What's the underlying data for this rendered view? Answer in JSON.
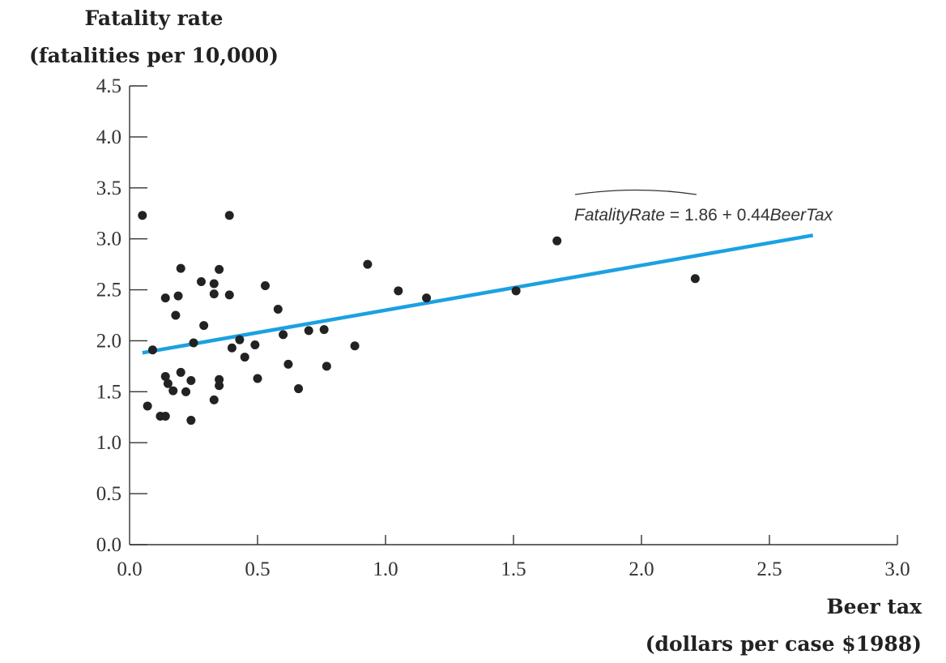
{
  "chart_data": {
    "type": "scatter",
    "ylabel": [
      "Fatality rate",
      "(fatalities per 10,000)"
    ],
    "xlabel": [
      "Beer tax",
      "(dollars per case $1988)"
    ],
    "xlim": [
      0.0,
      3.0
    ],
    "ylim": [
      0.0,
      4.5
    ],
    "xticks": [
      "0.0",
      "0.5",
      "1.0",
      "1.5",
      "2.0",
      "2.5",
      "3.0"
    ],
    "yticks": [
      "0.0",
      "0.5",
      "1.0",
      "1.5",
      "2.0",
      "2.5",
      "3.0",
      "3.5",
      "4.0",
      "4.5"
    ],
    "grid": false,
    "points": [
      {
        "x": 0.05,
        "y": 3.23
      },
      {
        "x": 0.07,
        "y": 1.36
      },
      {
        "x": 0.09,
        "y": 1.91
      },
      {
        "x": 0.12,
        "y": 1.26
      },
      {
        "x": 0.14,
        "y": 1.26
      },
      {
        "x": 0.14,
        "y": 1.65
      },
      {
        "x": 0.14,
        "y": 2.42
      },
      {
        "x": 0.15,
        "y": 1.58
      },
      {
        "x": 0.17,
        "y": 1.51
      },
      {
        "x": 0.18,
        "y": 2.25
      },
      {
        "x": 0.19,
        "y": 2.44
      },
      {
        "x": 0.2,
        "y": 1.69
      },
      {
        "x": 0.2,
        "y": 2.71
      },
      {
        "x": 0.22,
        "y": 1.5
      },
      {
        "x": 0.24,
        "y": 1.61
      },
      {
        "x": 0.24,
        "y": 1.22
      },
      {
        "x": 0.25,
        "y": 1.98
      },
      {
        "x": 0.28,
        "y": 2.58
      },
      {
        "x": 0.29,
        "y": 2.15
      },
      {
        "x": 0.33,
        "y": 2.56
      },
      {
        "x": 0.33,
        "y": 2.46
      },
      {
        "x": 0.33,
        "y": 1.42
      },
      {
        "x": 0.35,
        "y": 1.56
      },
      {
        "x": 0.35,
        "y": 1.62
      },
      {
        "x": 0.35,
        "y": 2.7
      },
      {
        "x": 0.39,
        "y": 2.45
      },
      {
        "x": 0.39,
        "y": 3.23
      },
      {
        "x": 0.4,
        "y": 1.93
      },
      {
        "x": 0.43,
        "y": 2.01
      },
      {
        "x": 0.45,
        "y": 1.84
      },
      {
        "x": 0.49,
        "y": 1.96
      },
      {
        "x": 0.5,
        "y": 1.63
      },
      {
        "x": 0.53,
        "y": 2.54
      },
      {
        "x": 0.58,
        "y": 2.31
      },
      {
        "x": 0.6,
        "y": 2.06
      },
      {
        "x": 0.62,
        "y": 1.77
      },
      {
        "x": 0.66,
        "y": 1.53
      },
      {
        "x": 0.7,
        "y": 2.1
      },
      {
        "x": 0.76,
        "y": 2.11
      },
      {
        "x": 0.77,
        "y": 1.75
      },
      {
        "x": 0.88,
        "y": 1.95
      },
      {
        "x": 0.93,
        "y": 2.75
      },
      {
        "x": 1.05,
        "y": 2.49
      },
      {
        "x": 1.16,
        "y": 2.42
      },
      {
        "x": 1.51,
        "y": 2.49
      },
      {
        "x": 1.67,
        "y": 2.98
      },
      {
        "x": 2.21,
        "y": 2.61
      }
    ],
    "regression": {
      "intercept": 1.86,
      "slope": 0.44,
      "x_range": [
        0.05,
        2.67
      ],
      "color": "#1ba1e2",
      "equation": {
        "lhs": "FatalityRate",
        "eq": " = 1.86 + 0.44",
        "var": "BeerTax"
      }
    },
    "point_color": "#222222",
    "axis_color": "#333333"
  }
}
